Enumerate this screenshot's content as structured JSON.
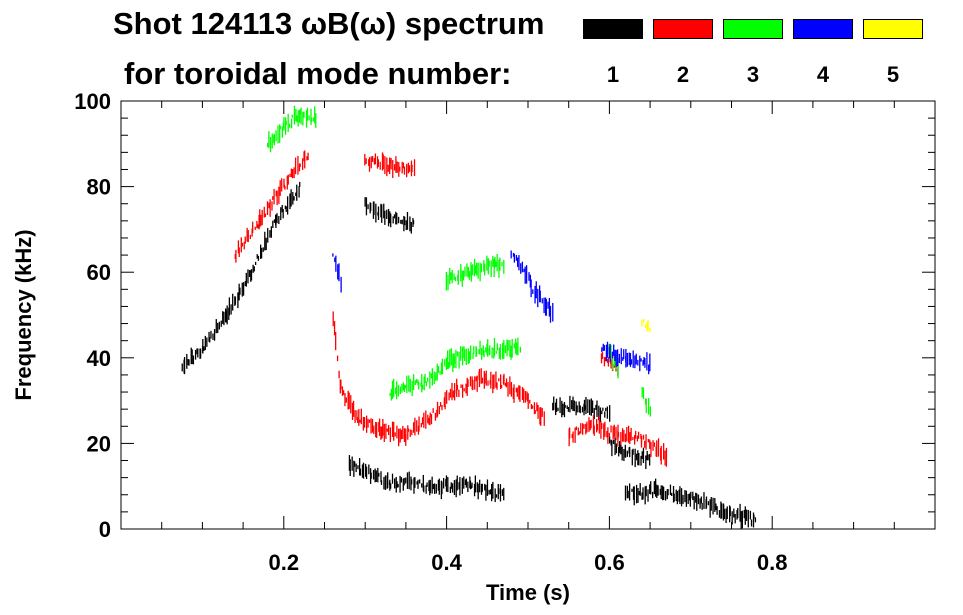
{
  "chart_data": {
    "type": "heatmap",
    "title_line1": "Shot 124113 ωB(ω) spectrum",
    "title_line2": "for toroidal mode number:",
    "xlabel": "Time (s)",
    "ylabel": "Frequency (kHz)",
    "xlim": [
      0.0,
      1.0
    ],
    "ylim": [
      0,
      100
    ],
    "x_ticks": [
      0.2,
      0.4,
      0.6,
      0.8
    ],
    "x_tick_labels": [
      "0.2",
      "0.4",
      "0.6",
      "0.8"
    ],
    "y_ticks": [
      0,
      20,
      40,
      60,
      80,
      100
    ],
    "y_tick_labels": [
      "0",
      "20",
      "40",
      "60",
      "80",
      "100"
    ],
    "legend": [
      {
        "label": "1",
        "color": "#000000"
      },
      {
        "label": "2",
        "color": "#ff0000"
      },
      {
        "label": "3",
        "color": "#00ff00"
      },
      {
        "label": "4",
        "color": "#0000ff"
      },
      {
        "label": "5",
        "color": "#ffff00"
      }
    ],
    "series": [
      {
        "name": "1",
        "color": "#000000",
        "tracks": [
          [
            [
              0.075,
              38
            ],
            [
              0.1,
              42
            ],
            [
              0.13,
              50
            ],
            [
              0.16,
              60
            ],
            [
              0.19,
              72
            ],
            [
              0.22,
              80
            ]
          ],
          [
            [
              0.28,
              15
            ],
            [
              0.33,
              11
            ],
            [
              0.38,
              10
            ],
            [
              0.43,
              10
            ],
            [
              0.47,
              8
            ]
          ],
          [
            [
              0.3,
              76
            ],
            [
              0.33,
              73
            ],
            [
              0.36,
              71
            ]
          ],
          [
            [
              0.53,
              29
            ],
            [
              0.57,
              28
            ],
            [
              0.6,
              27
            ]
          ],
          [
            [
              0.6,
              20
            ],
            [
              0.62,
              18
            ],
            [
              0.65,
              16
            ]
          ],
          [
            [
              0.62,
              8
            ],
            [
              0.66,
              9
            ],
            [
              0.7,
              7
            ],
            [
              0.74,
              4
            ],
            [
              0.78,
              2
            ]
          ]
        ]
      },
      {
        "name": "2",
        "color": "#ff0000",
        "tracks": [
          [
            [
              0.14,
              64
            ],
            [
              0.17,
              72
            ],
            [
              0.2,
              80
            ],
            [
              0.23,
              88
            ]
          ],
          [
            [
              0.26,
              50
            ],
            [
              0.27,
              33
            ],
            [
              0.29,
              26
            ],
            [
              0.32,
              23
            ],
            [
              0.35,
              22
            ]
          ],
          [
            [
              0.35,
              22
            ],
            [
              0.38,
              26
            ],
            [
              0.41,
              32
            ],
            [
              0.44,
              35
            ],
            [
              0.47,
              34
            ],
            [
              0.5,
              30
            ],
            [
              0.52,
              26
            ]
          ],
          [
            [
              0.3,
              86
            ],
            [
              0.33,
              85
            ],
            [
              0.36,
              84
            ]
          ],
          [
            [
              0.55,
              22
            ],
            [
              0.58,
              24
            ],
            [
              0.61,
              22
            ],
            [
              0.64,
              21
            ],
            [
              0.67,
              17
            ]
          ],
          [
            [
              0.59,
              40
            ],
            [
              0.61,
              38
            ]
          ]
        ]
      },
      {
        "name": "3",
        "color": "#00ff00",
        "tracks": [
          [
            [
              0.18,
              90
            ],
            [
              0.2,
              94
            ],
            [
              0.22,
              97
            ],
            [
              0.24,
              96
            ]
          ],
          [
            [
              0.33,
              32
            ],
            [
              0.37,
              34
            ],
            [
              0.41,
              40
            ],
            [
              0.45,
              42
            ],
            [
              0.49,
              42
            ]
          ],
          [
            [
              0.4,
              58
            ],
            [
              0.43,
              60
            ],
            [
              0.46,
              62
            ],
            [
              0.47,
              61
            ]
          ],
          [
            [
              0.6,
              42
            ],
            [
              0.61,
              37
            ]
          ],
          [
            [
              0.64,
              32
            ],
            [
              0.65,
              28
            ]
          ]
        ]
      },
      {
        "name": "4",
        "color": "#0000ff",
        "tracks": [
          [
            [
              0.26,
              64
            ],
            [
              0.27,
              58
            ]
          ],
          [
            [
              0.48,
              65
            ],
            [
              0.51,
              55
            ],
            [
              0.53,
              50
            ]
          ],
          [
            [
              0.59,
              42
            ],
            [
              0.62,
              40
            ],
            [
              0.65,
              38
            ]
          ]
        ]
      },
      {
        "name": "5",
        "color": "#ffff00",
        "tracks": [
          [
            [
              0.64,
              48
            ],
            [
              0.65,
              47
            ]
          ]
        ]
      }
    ]
  }
}
